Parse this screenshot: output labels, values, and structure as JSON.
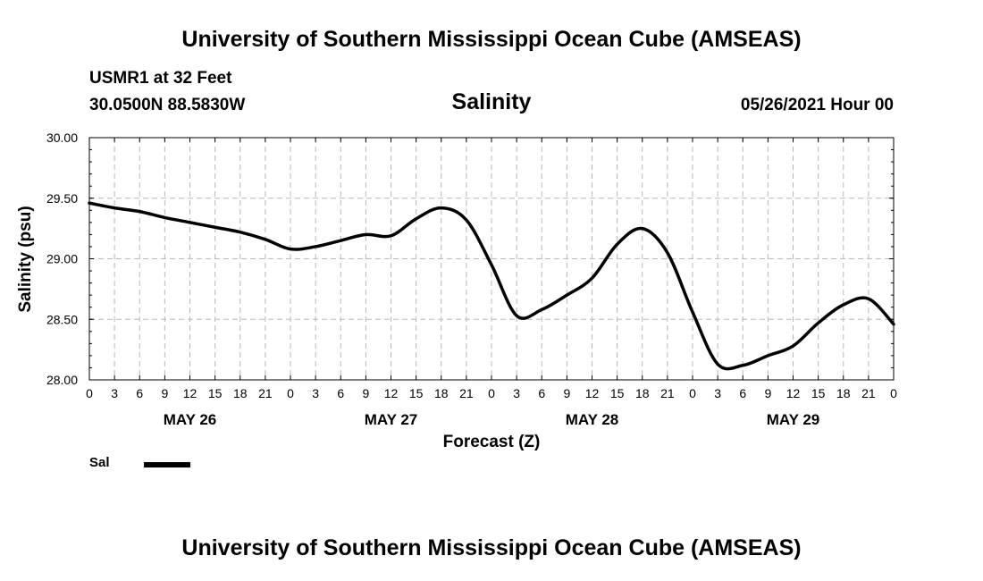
{
  "header": {
    "main_title": "University of Southern Mississippi Ocean Cube (AMSEAS)",
    "station_line": "USMR1 at 32 Feet",
    "coords_line": "30.0500N  88.5830W",
    "chart_title": "Salinity",
    "datetime": "05/26/2021 Hour 00"
  },
  "footer": {
    "main_title": "University of Southern Mississippi Ocean Cube (AMSEAS)"
  },
  "legend": {
    "label": "Sal",
    "color": "#000000"
  },
  "chart_data": {
    "type": "line",
    "title": "Salinity",
    "xlabel": "Forecast (Z)",
    "ylabel": "Salinity (psu)",
    "ylim": [
      28.0,
      30.0
    ],
    "xlim": [
      0,
      96
    ],
    "grid": true,
    "yticks": [
      "28.00",
      "28.50",
      "29.00",
      "29.50",
      "30.00"
    ],
    "ytick_values": [
      28.0,
      28.5,
      29.0,
      29.5,
      30.0
    ],
    "xtick_labels": [
      "0",
      "3",
      "6",
      "9",
      "12",
      "15",
      "18",
      "21",
      "0",
      "3",
      "6",
      "9",
      "12",
      "15",
      "18",
      "21",
      "0",
      "3",
      "6",
      "9",
      "12",
      "15",
      "18",
      "21",
      "0",
      "3",
      "6",
      "9",
      "12",
      "15",
      "18",
      "21",
      "0"
    ],
    "day_labels": [
      {
        "label": "MAY 26",
        "hour": 12
      },
      {
        "label": "MAY 27",
        "hour": 36
      },
      {
        "label": "MAY 28",
        "hour": 60
      },
      {
        "label": "MAY 29",
        "hour": 84
      }
    ],
    "series": [
      {
        "name": "Sal",
        "color": "#000000",
        "x": [
          0,
          3,
          6,
          9,
          12,
          15,
          18,
          21,
          24,
          27,
          30,
          33,
          36,
          39,
          42,
          45,
          48,
          51,
          54,
          57,
          60,
          63,
          66,
          69,
          72,
          75,
          78,
          81,
          84,
          87,
          90,
          93,
          96
        ],
        "values": [
          29.46,
          29.42,
          29.39,
          29.34,
          29.3,
          29.26,
          29.22,
          29.16,
          29.08,
          29.1,
          29.15,
          29.2,
          29.19,
          29.33,
          29.42,
          29.32,
          28.95,
          28.53,
          28.58,
          28.7,
          28.84,
          29.12,
          29.25,
          29.05,
          28.56,
          28.13,
          28.12,
          28.2,
          28.28,
          28.47,
          28.62,
          28.67,
          28.46
        ]
      }
    ]
  }
}
